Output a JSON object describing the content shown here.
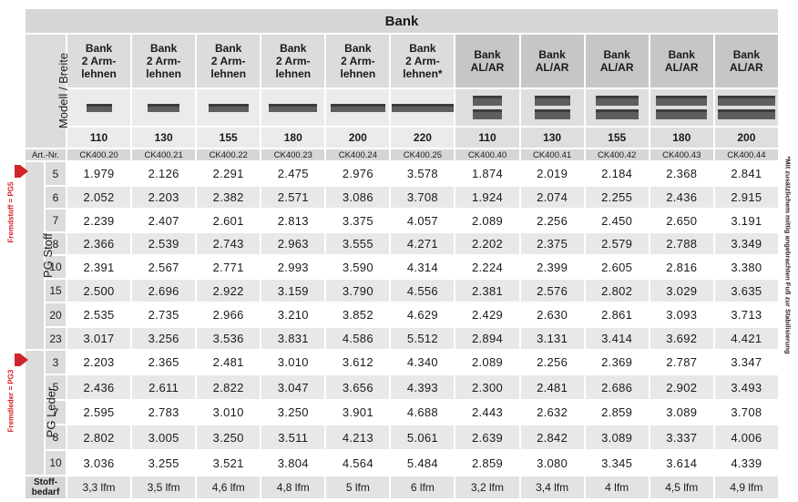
{
  "title": "Bank",
  "model_label": "Modell / Breite",
  "art_label": "Art.-Nr.",
  "columns": [
    {
      "name": "Bank\n2 Arm-\nlehnen",
      "width": "110",
      "art": "CK400.20",
      "shape": "single"
    },
    {
      "name": "Bank\n2 Arm-\nlehnen",
      "width": "130",
      "art": "CK400.21",
      "shape": "single"
    },
    {
      "name": "Bank\n2 Arm-\nlehnen",
      "width": "155",
      "art": "CK400.22",
      "shape": "single"
    },
    {
      "name": "Bank\n2 Arm-\nlehnen",
      "width": "180",
      "art": "CK400.23",
      "shape": "single"
    },
    {
      "name": "Bank\n2 Arm-\nlehnen",
      "width": "200",
      "art": "CK400.24",
      "shape": "single"
    },
    {
      "name": "Bank\n2 Arm-\nlehnen*",
      "width": "220",
      "art": "CK400.25",
      "shape": "single"
    },
    {
      "name": "Bank\nAL/AR",
      "width": "110",
      "art": "CK400.40",
      "shape": "double"
    },
    {
      "name": "Bank\nAL/AR",
      "width": "130",
      "art": "CK400.41",
      "shape": "double"
    },
    {
      "name": "Bank\nAL/AR",
      "width": "155",
      "art": "CK400.42",
      "shape": "double"
    },
    {
      "name": "Bank\nAL/AR",
      "width": "180",
      "art": "CK400.43",
      "shape": "double"
    },
    {
      "name": "Bank\nAL/AR",
      "width": "200",
      "art": "CK400.44",
      "shape": "double"
    }
  ],
  "groups": [
    {
      "label": "PG Stoff",
      "side_label": "Fremdstoff = PG5",
      "rows": [
        {
          "pg": "5",
          "values": [
            "1.979",
            "2.126",
            "2.291",
            "2.475",
            "2.976",
            "3.578",
            "1.874",
            "2.019",
            "2.184",
            "2.368",
            "2.841"
          ]
        },
        {
          "pg": "6",
          "values": [
            "2.052",
            "2.203",
            "2.382",
            "2.571",
            "3.086",
            "3.708",
            "1.924",
            "2.074",
            "2.255",
            "2.436",
            "2.915"
          ]
        },
        {
          "pg": "7",
          "values": [
            "2.239",
            "2.407",
            "2.601",
            "2.813",
            "3.375",
            "4.057",
            "2.089",
            "2.256",
            "2.450",
            "2.650",
            "3.191"
          ]
        },
        {
          "pg": "8",
          "values": [
            "2.366",
            "2.539",
            "2.743",
            "2.963",
            "3.555",
            "4.271",
            "2.202",
            "2.375",
            "2.579",
            "2.788",
            "3.349"
          ]
        },
        {
          "pg": "10",
          "values": [
            "2.391",
            "2.567",
            "2.771",
            "2.993",
            "3.590",
            "4.314",
            "2.224",
            "2.399",
            "2.605",
            "2.816",
            "3.380"
          ]
        },
        {
          "pg": "15",
          "values": [
            "2.500",
            "2.696",
            "2.922",
            "3.159",
            "3.790",
            "4.556",
            "2.381",
            "2.576",
            "2.802",
            "3.029",
            "3.635"
          ]
        },
        {
          "pg": "20",
          "values": [
            "2.535",
            "2.735",
            "2.966",
            "3.210",
            "3.852",
            "4.629",
            "2.429",
            "2.630",
            "2.861",
            "3.093",
            "3.713"
          ]
        },
        {
          "pg": "23",
          "values": [
            "3.017",
            "3.256",
            "3.536",
            "3.831",
            "4.586",
            "5.512",
            "2.894",
            "3.131",
            "3.414",
            "3.692",
            "4.421"
          ]
        }
      ]
    },
    {
      "label": "PG Leder",
      "side_label": "Fremdleder = PG3",
      "rows": [
        {
          "pg": "3",
          "values": [
            "2.203",
            "2.365",
            "2.481",
            "3.010",
            "3.612",
            "4.340",
            "2.089",
            "2.256",
            "2.369",
            "2.787",
            "3.347"
          ]
        },
        {
          "pg": "5",
          "values": [
            "2.436",
            "2.611",
            "2.822",
            "3.047",
            "3.656",
            "4.393",
            "2.300",
            "2.481",
            "2.686",
            "2.902",
            "3.493"
          ]
        },
        {
          "pg": "7",
          "values": [
            "2.595",
            "2.783",
            "3.010",
            "3.250",
            "3.901",
            "4.688",
            "2.443",
            "2.632",
            "2.859",
            "3.089",
            "3.708"
          ]
        },
        {
          "pg": "8",
          "values": [
            "2.802",
            "3.005",
            "3.250",
            "3.511",
            "4.213",
            "5.061",
            "2.639",
            "2.842",
            "3.089",
            "3.337",
            "4.006"
          ]
        },
        {
          "pg": "10",
          "values": [
            "3.036",
            "3.255",
            "3.521",
            "3.804",
            "4.564",
            "5.484",
            "2.859",
            "3.080",
            "3.345",
            "3.614",
            "4.339"
          ]
        }
      ]
    }
  ],
  "stoffbedarf_label": "Stoff-\nbedarf",
  "stoffbedarf": [
    "3,3 lfm",
    "3,5 lfm",
    "4,6 lfm",
    "4,8 lfm",
    "5 lfm",
    "6 lfm",
    "3,2 lfm",
    "3,4 lfm",
    "4 lfm",
    "4,5 lfm",
    "4,9 lfm"
  ],
  "footnote": "*Mit zusätzlichem mittig angebrachten Fuß zur Stabilisierung",
  "accent": "#d2232a"
}
